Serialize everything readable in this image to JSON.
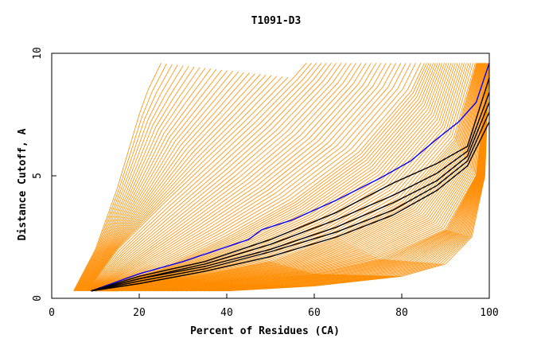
{
  "chart_data": {
    "type": "line",
    "title": "T1091-D3",
    "xlabel": "Percent of Residues (CA)",
    "ylabel": "Distance Cutoff, A",
    "xlim": [
      0,
      100
    ],
    "ylim": [
      0,
      10
    ],
    "xticks": [
      0,
      20,
      40,
      60,
      80,
      100
    ],
    "yticks": [
      0,
      5,
      10
    ],
    "grid": false,
    "colors": {
      "bulk": "#ff8c00",
      "highlight": "#0000ff",
      "reference": "#000000",
      "axes": "#000000"
    },
    "series_groups": [
      {
        "color": "#ff8c00",
        "count": 120,
        "description_of_shape": "cumulative curves, all ending at y ~9.6",
        "representative": [
          {
            "x": [
              5,
              10,
              15,
              20,
              22,
              25
            ],
            "y": [
              0.3,
              2.0,
              4.5,
              7.5,
              8.5,
              9.6
            ]
          },
          {
            "x": [
              8,
              15,
              25,
              35,
              45,
              55,
              58
            ],
            "y": [
              0.3,
              2.0,
              3.8,
              5.5,
              7.2,
              9.0,
              9.6
            ]
          },
          {
            "x": [
              10,
              25,
              40,
              55,
              70,
              82,
              85
            ],
            "y": [
              0.3,
              1.2,
              2.5,
              4.0,
              6.0,
              8.5,
              9.6
            ]
          },
          {
            "x": [
              10,
              30,
              50,
              65,
              80,
              92,
              97
            ],
            "y": [
              0.3,
              0.8,
              1.5,
              2.5,
              4.0,
              6.5,
              9.6
            ]
          },
          {
            "x": [
              15,
              40,
              60,
              75,
              90,
              97,
              100
            ],
            "y": [
              0.3,
              0.6,
              1.0,
              1.6,
              2.8,
              5.0,
              9.6
            ]
          },
          {
            "x": [
              40,
              60,
              80,
              90,
              96,
              99,
              100
            ],
            "y": [
              0.3,
              0.5,
              0.9,
              1.4,
              2.5,
              5.0,
              9.6
            ]
          }
        ]
      },
      {
        "color": "#0000ff",
        "count": 1,
        "x": [
          9,
          20,
          30,
          40,
          45,
          48,
          55,
          65,
          75,
          82,
          88,
          93,
          97,
          100
        ],
        "y": [
          0.3,
          1.0,
          1.5,
          2.1,
          2.4,
          2.8,
          3.2,
          4.0,
          4.9,
          5.6,
          6.5,
          7.2,
          8.0,
          9.6
        ]
      },
      {
        "color": "#000000",
        "count": 5,
        "representative": [
          {
            "x": [
              9,
              20,
              35,
              50,
              65,
              78,
              88,
              95,
              100
            ],
            "y": [
              0.3,
              0.9,
              1.5,
              2.4,
              3.5,
              4.7,
              5.5,
              6.2,
              9.0
            ]
          },
          {
            "x": [
              9,
              20,
              35,
              50,
              65,
              78,
              88,
              95,
              100
            ],
            "y": [
              0.3,
              0.8,
              1.4,
              2.2,
              3.2,
              4.2,
              5.1,
              6.0,
              8.4
            ]
          },
          {
            "x": [
              9,
              20,
              35,
              50,
              65,
              78,
              88,
              95,
              100
            ],
            "y": [
              0.3,
              0.8,
              1.3,
              2.0,
              2.9,
              3.9,
              4.8,
              5.8,
              8.0
            ]
          },
          {
            "x": [
              9,
              20,
              35,
              50,
              65,
              78,
              88,
              95,
              100
            ],
            "y": [
              0.3,
              0.7,
              1.2,
              1.9,
              2.7,
              3.6,
              4.6,
              5.6,
              7.6
            ]
          },
          {
            "x": [
              9,
              20,
              35,
              50,
              65,
              78,
              88,
              95,
              100
            ],
            "y": [
              0.3,
              0.6,
              1.1,
              1.7,
              2.5,
              3.4,
              4.4,
              5.4,
              7.2
            ]
          }
        ]
      }
    ]
  }
}
